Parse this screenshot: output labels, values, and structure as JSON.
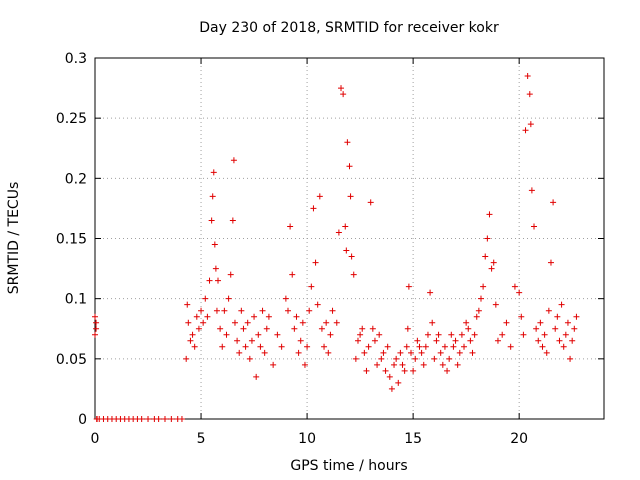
{
  "chart_data": {
    "type": "scatter",
    "title": "Day 230 of 2018, SRMTID for receiver kokr",
    "xlabel": "GPS time / hours",
    "ylabel": "SRMTID / TECUs",
    "xlim": [
      0,
      24
    ],
    "ylim": [
      0,
      0.3
    ],
    "xticks": [
      0,
      5,
      10,
      15,
      20
    ],
    "yticks": [
      0,
      0.05,
      0.1,
      0.15,
      0.2,
      0.25,
      0.3
    ],
    "xtick_labels": [
      "0",
      "5",
      "10",
      "15",
      "20"
    ],
    "ytick_labels": [
      "0",
      "0.05",
      "0.1",
      "0.15",
      "0.2",
      "0.25",
      "0.3"
    ],
    "grid": true,
    "marker": "+",
    "color": "#e00000",
    "series": [
      {
        "name": "SRMTID",
        "x": [
          0.0,
          0.0,
          0.05,
          0.05,
          0.08,
          0.1,
          0.2,
          0.4,
          0.6,
          0.8,
          1.0,
          1.2,
          1.4,
          1.6,
          1.8,
          2.0,
          2.2,
          2.5,
          2.8,
          3.0,
          3.3,
          3.6,
          3.9,
          4.1,
          4.3,
          4.35,
          4.4,
          4.5,
          4.6,
          4.7,
          4.8,
          4.9,
          5.0,
          5.1,
          5.2,
          5.3,
          5.4,
          5.5,
          5.55,
          5.6,
          5.65,
          5.7,
          5.75,
          5.8,
          5.9,
          6.0,
          6.1,
          6.2,
          6.3,
          6.4,
          6.5,
          6.55,
          6.6,
          6.7,
          6.8,
          6.9,
          7.0,
          7.1,
          7.2,
          7.3,
          7.4,
          7.5,
          7.6,
          7.7,
          7.8,
          7.9,
          8.0,
          8.1,
          8.2,
          8.4,
          8.6,
          8.8,
          9.0,
          9.1,
          9.2,
          9.3,
          9.4,
          9.5,
          9.6,
          9.7,
          9.8,
          9.9,
          10.0,
          10.1,
          10.2,
          10.3,
          10.4,
          10.5,
          10.6,
          10.7,
          10.8,
          10.9,
          11.0,
          11.1,
          11.2,
          11.4,
          11.5,
          11.6,
          11.7,
          11.8,
          11.85,
          11.9,
          12.0,
          12.05,
          12.1,
          12.2,
          12.3,
          12.4,
          12.5,
          12.6,
          12.7,
          12.8,
          12.9,
          13.0,
          13.1,
          13.2,
          13.3,
          13.4,
          13.5,
          13.6,
          13.7,
          13.8,
          13.9,
          14.0,
          14.1,
          14.2,
          14.3,
          14.4,
          14.5,
          14.6,
          14.7,
          14.75,
          14.8,
          14.9,
          15.0,
          15.1,
          15.2,
          15.3,
          15.4,
          15.5,
          15.6,
          15.7,
          15.8,
          15.9,
          16.0,
          16.1,
          16.2,
          16.3,
          16.4,
          16.5,
          16.6,
          16.7,
          16.8,
          16.9,
          17.0,
          17.1,
          17.2,
          17.3,
          17.4,
          17.5,
          17.6,
          17.7,
          17.8,
          17.9,
          18.0,
          18.1,
          18.2,
          18.3,
          18.4,
          18.5,
          18.6,
          18.7,
          18.8,
          18.9,
          19.0,
          19.2,
          19.4,
          19.6,
          19.8,
          20.0,
          20.1,
          20.2,
          20.3,
          20.4,
          20.5,
          20.55,
          20.6,
          20.7,
          20.8,
          20.9,
          21.0,
          21.1,
          21.2,
          21.3,
          21.4,
          21.5,
          21.6,
          21.7,
          21.8,
          21.9,
          22.0,
          22.1,
          22.2,
          22.3,
          22.4,
          22.5,
          22.6,
          22.7
        ],
        "y": [
          0.085,
          0.07,
          0.075,
          0.08,
          0.0,
          0.0,
          0.0,
          0.0,
          0.0,
          0.0,
          0.0,
          0.0,
          0.0,
          0.0,
          0.0,
          0.0,
          0.0,
          0.0,
          0.0,
          0.0,
          0.0,
          0.0,
          0.0,
          0.0,
          0.05,
          0.095,
          0.08,
          0.065,
          0.07,
          0.06,
          0.085,
          0.075,
          0.09,
          0.08,
          0.1,
          0.085,
          0.115,
          0.165,
          0.185,
          0.205,
          0.145,
          0.125,
          0.09,
          0.115,
          0.075,
          0.06,
          0.09,
          0.07,
          0.1,
          0.12,
          0.165,
          0.215,
          0.08,
          0.065,
          0.055,
          0.09,
          0.075,
          0.06,
          0.08,
          0.05,
          0.065,
          0.085,
          0.035,
          0.07,
          0.06,
          0.09,
          0.055,
          0.075,
          0.085,
          0.045,
          0.07,
          0.06,
          0.1,
          0.09,
          0.16,
          0.12,
          0.075,
          0.085,
          0.055,
          0.065,
          0.08,
          0.045,
          0.06,
          0.09,
          0.11,
          0.175,
          0.13,
          0.095,
          0.185,
          0.075,
          0.06,
          0.08,
          0.055,
          0.07,
          0.09,
          0.08,
          0.155,
          0.275,
          0.27,
          0.16,
          0.14,
          0.23,
          0.21,
          0.185,
          0.135,
          0.12,
          0.05,
          0.065,
          0.07,
          0.075,
          0.055,
          0.04,
          0.06,
          0.18,
          0.075,
          0.065,
          0.045,
          0.07,
          0.05,
          0.055,
          0.04,
          0.06,
          0.035,
          0.025,
          0.045,
          0.05,
          0.03,
          0.055,
          0.045,
          0.04,
          0.06,
          0.075,
          0.11,
          0.055,
          0.04,
          0.05,
          0.065,
          0.06,
          0.055,
          0.045,
          0.06,
          0.07,
          0.105,
          0.08,
          0.05,
          0.065,
          0.07,
          0.055,
          0.045,
          0.06,
          0.04,
          0.05,
          0.07,
          0.06,
          0.065,
          0.045,
          0.055,
          0.07,
          0.06,
          0.08,
          0.075,
          0.065,
          0.055,
          0.07,
          0.085,
          0.09,
          0.1,
          0.11,
          0.135,
          0.15,
          0.17,
          0.125,
          0.13,
          0.095,
          0.065,
          0.07,
          0.08,
          0.06,
          0.11,
          0.105,
          0.085,
          0.07,
          0.24,
          0.285,
          0.27,
          0.245,
          0.19,
          0.16,
          0.075,
          0.065,
          0.08,
          0.06,
          0.07,
          0.055,
          0.09,
          0.13,
          0.18,
          0.075,
          0.085,
          0.065,
          0.095,
          0.06,
          0.07,
          0.08,
          0.05,
          0.065,
          0.075,
          0.085
        ]
      }
    ]
  }
}
